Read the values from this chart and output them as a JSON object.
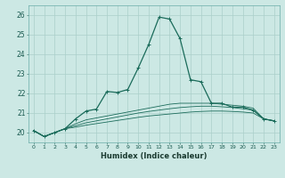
{
  "title": "",
  "xlabel": "Humidex (Indice chaleur)",
  "ylabel": "",
  "background_color": "#cce8e4",
  "grid_color": "#aacfca",
  "line_color": "#1a6b5a",
  "x_ticks": [
    0,
    1,
    2,
    3,
    4,
    5,
    6,
    7,
    8,
    9,
    10,
    11,
    12,
    13,
    14,
    15,
    16,
    17,
    18,
    19,
    20,
    21,
    22,
    23
  ],
  "y_ticks": [
    20,
    21,
    22,
    23,
    24,
    25,
    26
  ],
  "xlim": [
    -0.5,
    23.5
  ],
  "ylim": [
    19.5,
    26.5
  ],
  "series": [
    [
      20.1,
      19.8,
      20.0,
      20.2,
      20.7,
      21.1,
      21.2,
      22.1,
      22.05,
      22.2,
      23.3,
      24.5,
      25.9,
      25.8,
      24.8,
      22.7,
      22.6,
      21.5,
      21.5,
      21.3,
      21.3,
      21.15,
      20.7,
      20.6
    ],
    [
      20.1,
      19.8,
      20.0,
      20.2,
      20.45,
      20.65,
      20.75,
      20.85,
      20.95,
      21.05,
      21.15,
      21.25,
      21.35,
      21.45,
      21.5,
      21.5,
      21.5,
      21.5,
      21.45,
      21.4,
      21.35,
      21.25,
      20.7,
      20.6
    ],
    [
      20.1,
      19.8,
      20.0,
      20.2,
      20.35,
      20.5,
      20.6,
      20.7,
      20.8,
      20.9,
      21.0,
      21.08,
      21.15,
      21.22,
      21.28,
      21.32,
      21.35,
      21.35,
      21.32,
      21.28,
      21.22,
      21.15,
      20.7,
      20.6
    ],
    [
      20.1,
      19.8,
      20.0,
      20.2,
      20.28,
      20.38,
      20.46,
      20.54,
      20.62,
      20.7,
      20.78,
      20.85,
      20.9,
      20.95,
      21.0,
      21.05,
      21.08,
      21.1,
      21.1,
      21.08,
      21.05,
      21.0,
      20.7,
      20.6
    ]
  ]
}
